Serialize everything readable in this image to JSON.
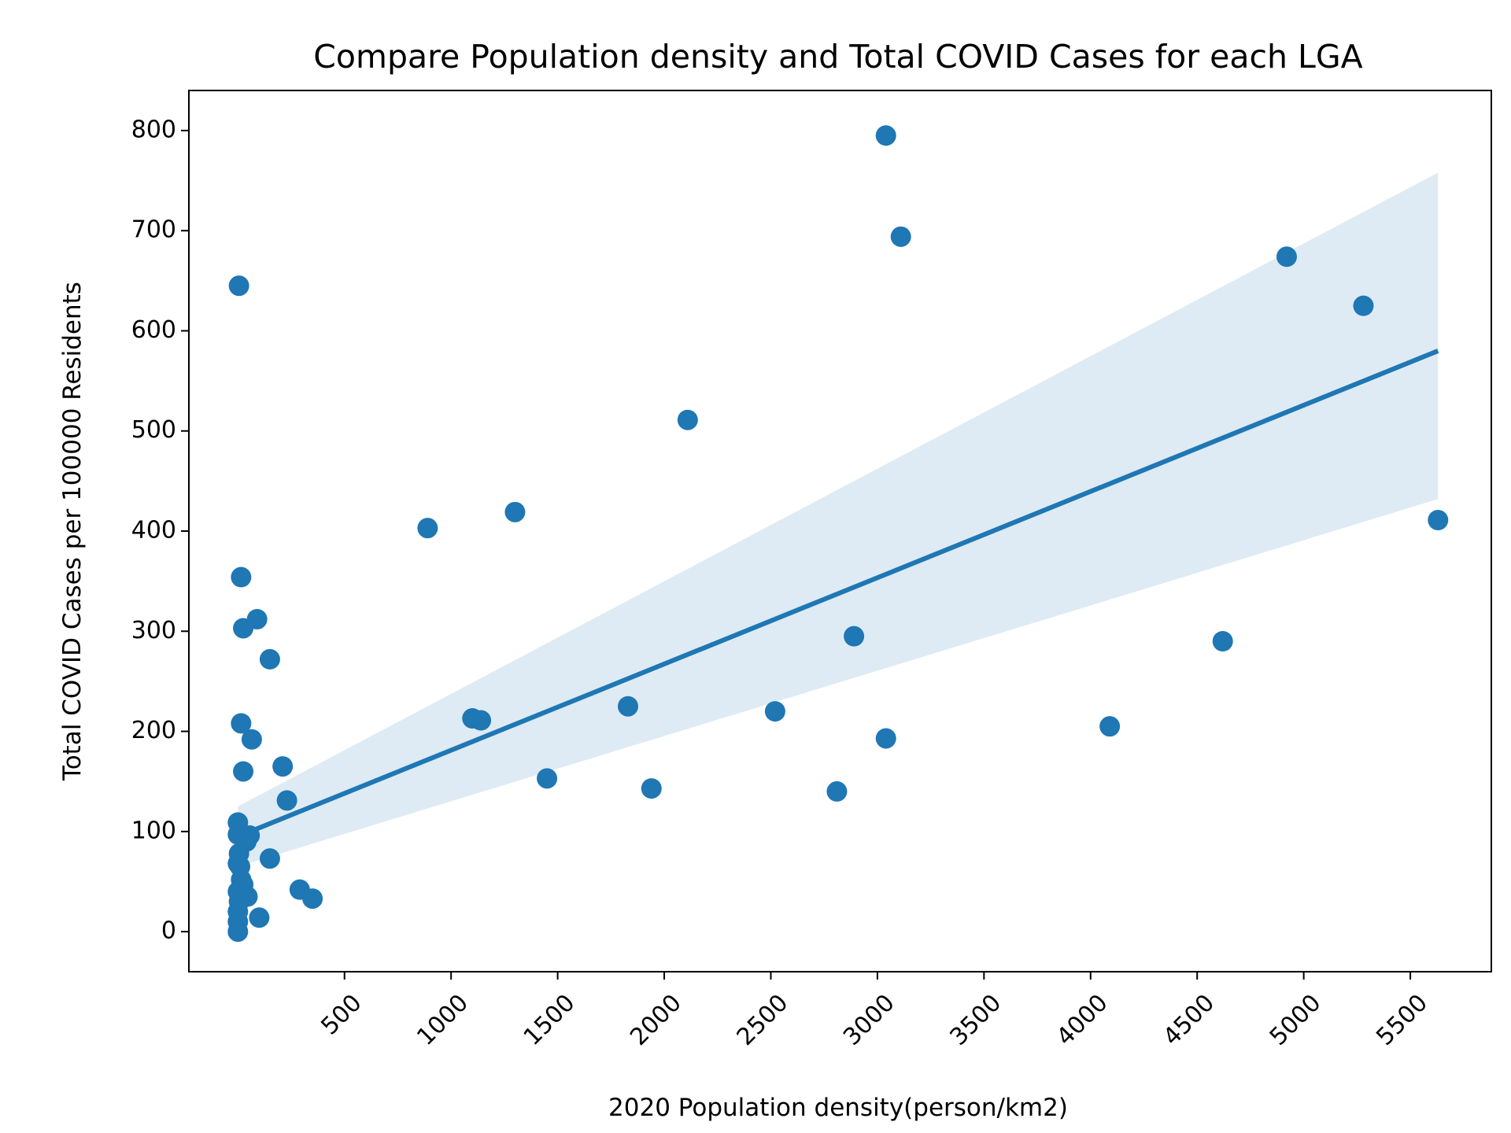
{
  "chart_data": {
    "type": "scatter",
    "title": "Compare Population density and Total COVID Cases for each LGA",
    "xlabel": "2020 Population density(person/km2)",
    "ylabel": "Total COVID Cases per 100000 Residents",
    "xlim": [
      -230,
      5880
    ],
    "ylim": [
      -40,
      840
    ],
    "xticks": [
      500,
      1000,
      1500,
      2000,
      2500,
      3000,
      3500,
      4000,
      4500,
      5000,
      5500
    ],
    "yticks": [
      0,
      100,
      200,
      300,
      400,
      500,
      600,
      700,
      800
    ],
    "grid": false,
    "legend": "none",
    "colors": {
      "points": "#1f77b4",
      "line": "#1f77b4",
      "band": "#1f77b4"
    },
    "points": [
      {
        "x": 3040,
        "y": 795
      },
      {
        "x": 3110,
        "y": 694
      },
      {
        "x": 5,
        "y": 645
      },
      {
        "x": 4920,
        "y": 674
      },
      {
        "x": 5280,
        "y": 625
      },
      {
        "x": 2110,
        "y": 511
      },
      {
        "x": 1300,
        "y": 419
      },
      {
        "x": 890,
        "y": 403
      },
      {
        "x": 5630,
        "y": 411
      },
      {
        "x": 15,
        "y": 354
      },
      {
        "x": 90,
        "y": 312
      },
      {
        "x": 25,
        "y": 303
      },
      {
        "x": 150,
        "y": 272
      },
      {
        "x": 2890,
        "y": 295
      },
      {
        "x": 4620,
        "y": 290
      },
      {
        "x": 15,
        "y": 208
      },
      {
        "x": 65,
        "y": 192
      },
      {
        "x": 1830,
        "y": 225
      },
      {
        "x": 2520,
        "y": 220
      },
      {
        "x": 1100,
        "y": 213
      },
      {
        "x": 1140,
        "y": 211
      },
      {
        "x": 3040,
        "y": 193
      },
      {
        "x": 4090,
        "y": 205
      },
      {
        "x": 210,
        "y": 165
      },
      {
        "x": 25,
        "y": 160
      },
      {
        "x": 1450,
        "y": 153
      },
      {
        "x": 1940,
        "y": 143
      },
      {
        "x": 2810,
        "y": 140
      },
      {
        "x": 230,
        "y": 131
      },
      {
        "x": 0,
        "y": 109
      },
      {
        "x": 0,
        "y": 97
      },
      {
        "x": 55,
        "y": 96
      },
      {
        "x": 40,
        "y": 90
      },
      {
        "x": 5,
        "y": 78
      },
      {
        "x": 0,
        "y": 68
      },
      {
        "x": 10,
        "y": 65
      },
      {
        "x": 150,
        "y": 73
      },
      {
        "x": 15,
        "y": 52
      },
      {
        "x": 25,
        "y": 47
      },
      {
        "x": 290,
        "y": 42
      },
      {
        "x": 0,
        "y": 40
      },
      {
        "x": 45,
        "y": 35
      },
      {
        "x": 350,
        "y": 33
      },
      {
        "x": 5,
        "y": 30
      },
      {
        "x": 0,
        "y": 20
      },
      {
        "x": 100,
        "y": 14
      },
      {
        "x": 0,
        "y": 10
      },
      {
        "x": 0,
        "y": 0
      }
    ],
    "regression": {
      "x_start": 0,
      "y_start": 95,
      "x_end": 5630,
      "y_end": 580,
      "ci_start": [
        65,
        125
      ],
      "ci_end": [
        432,
        758
      ]
    }
  }
}
